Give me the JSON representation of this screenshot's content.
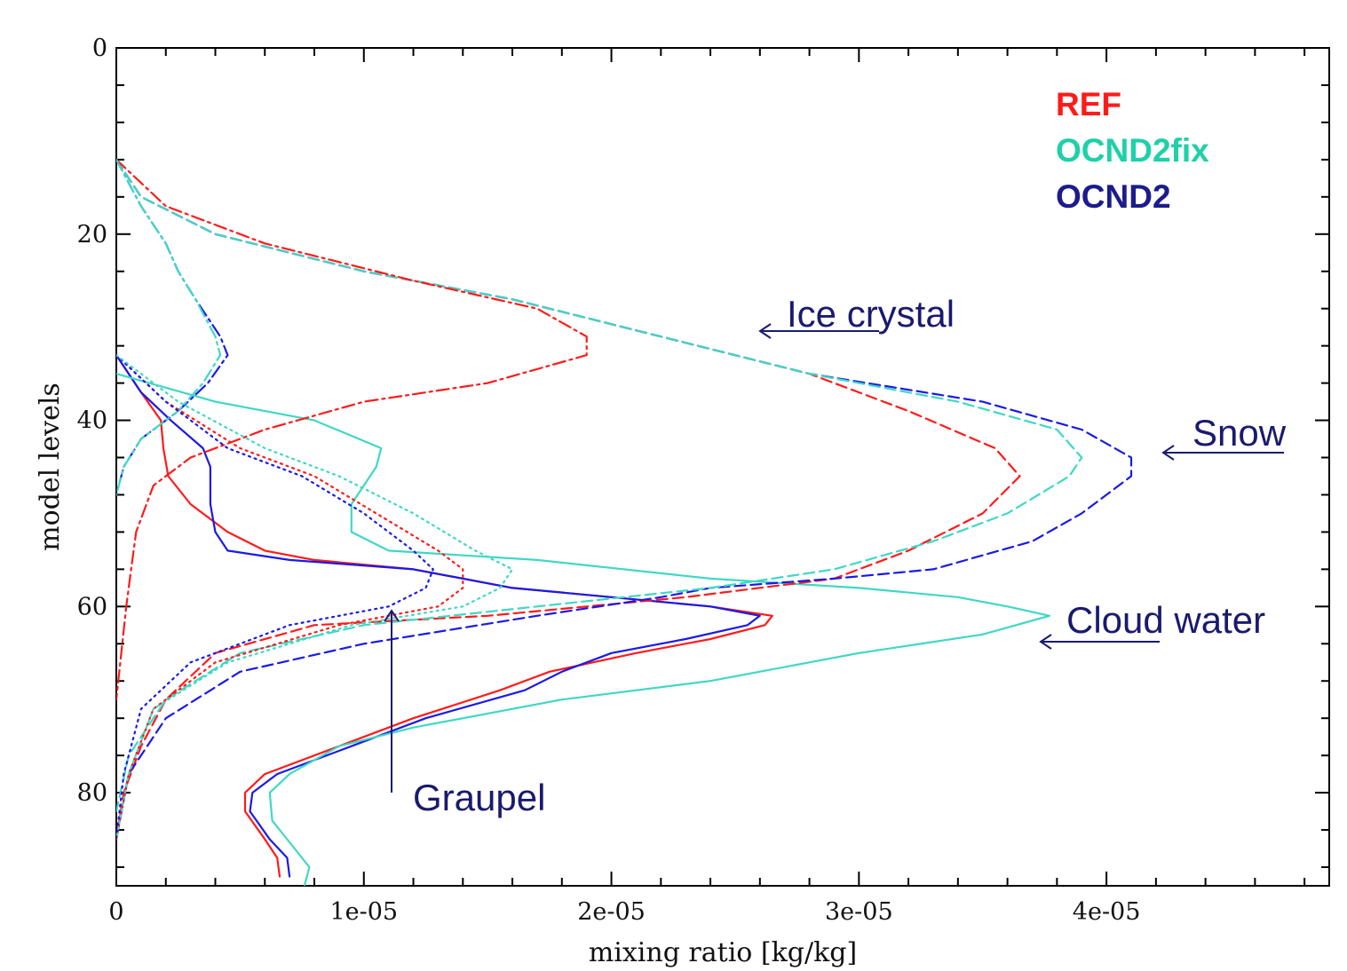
{
  "chart_data": {
    "type": "line",
    "title": "",
    "xlabel": "mixing ratio [kg/kg]",
    "ylabel": "model levels",
    "xlim": [
      0,
      4.9e-05
    ],
    "ylim": [
      90,
      0
    ],
    "y_inverted": true,
    "x_ticks": [
      0,
      1e-05,
      2e-05,
      3e-05,
      4e-05
    ],
    "x_tick_labels": [
      "0",
      "1e-05",
      "2e-05",
      "3e-05",
      "4e-05"
    ],
    "y_ticks": [
      0,
      20,
      40,
      60,
      80
    ],
    "y_tick_labels": [
      "0",
      "20",
      "40",
      "60",
      "80"
    ],
    "grid": false,
    "legend": {
      "placement": "top-right",
      "entries": [
        {
          "label": "REF",
          "color": "#ff1a1a"
        },
        {
          "label": "OCND2fix",
          "color": "#1fd0a8"
        },
        {
          "label": "OCND2",
          "color": "#1c1c8c"
        }
      ]
    },
    "annotations": [
      {
        "text": "Ice crystal",
        "arrow_to": [
          2.6e-05,
          30
        ]
      },
      {
        "text": "Snow",
        "arrow_to": [
          4.25e-05,
          43
        ]
      },
      {
        "text": "Cloud water",
        "arrow_to": [
          3.75e-05,
          64
        ]
      },
      {
        "text": "Graupel",
        "arrow_to": [
          1.12e-05,
          60
        ]
      }
    ],
    "series_groups": [
      {
        "species": "Cloud water",
        "style": "solid"
      },
      {
        "species": "Snow",
        "style": "dashed"
      },
      {
        "species": "Ice crystal",
        "style": "dash-dot"
      },
      {
        "species": "Graupel",
        "style": "dotted"
      }
    ],
    "series": [
      {
        "experiment": "REF",
        "species": "Cloud water",
        "color": "#ff1a1a",
        "style": "solid",
        "points": [
          [
            0.0,
            33
          ],
          [
            1e-06,
            37
          ],
          [
            1.8e-06,
            40
          ],
          [
            1.9e-06,
            43
          ],
          [
            2.1e-06,
            46
          ],
          [
            3e-06,
            49
          ],
          [
            4.5e-06,
            52
          ],
          [
            6e-06,
            54
          ],
          [
            8e-06,
            55
          ],
          [
            1.2e-05,
            56
          ],
          [
            1.6e-05,
            58
          ],
          [
            2e-05,
            59
          ],
          [
            2.4e-05,
            60
          ],
          [
            2.65e-05,
            61
          ],
          [
            2.62e-05,
            62
          ],
          [
            2.4e-05,
            63.5
          ],
          [
            2.1e-05,
            65
          ],
          [
            1.75e-05,
            67
          ],
          [
            1.55e-05,
            69
          ],
          [
            1.2e-05,
            72
          ],
          [
            9e-06,
            75
          ],
          [
            6e-06,
            78
          ],
          [
            5.2e-06,
            80
          ],
          [
            5.2e-06,
            82
          ],
          [
            6e-06,
            85
          ],
          [
            6.5e-06,
            87
          ],
          [
            6.6e-06,
            89
          ]
        ]
      },
      {
        "experiment": "OCND2",
        "species": "Cloud water",
        "color": "#1a1ae6",
        "style": "solid",
        "points": [
          [
            0.0,
            33
          ],
          [
            1e-06,
            37
          ],
          [
            2.2e-06,
            40
          ],
          [
            3.5e-06,
            43
          ],
          [
            3.8e-06,
            45
          ],
          [
            3.8e-06,
            49
          ],
          [
            4e-06,
            52
          ],
          [
            4.5e-06,
            54
          ],
          [
            7e-06,
            55
          ],
          [
            1.2e-05,
            56
          ],
          [
            1.6e-05,
            58
          ],
          [
            2e-05,
            59
          ],
          [
            2.4e-05,
            60
          ],
          [
            2.6e-05,
            61
          ],
          [
            2.55e-05,
            62
          ],
          [
            2.3e-05,
            63.5
          ],
          [
            2e-05,
            65
          ],
          [
            1.8e-05,
            67
          ],
          [
            1.65e-05,
            69
          ],
          [
            1.25e-05,
            72
          ],
          [
            9.5e-06,
            75
          ],
          [
            6.5e-06,
            78
          ],
          [
            5.5e-06,
            80
          ],
          [
            5.4e-06,
            82
          ],
          [
            6.2e-06,
            85
          ],
          [
            6.9e-06,
            87
          ],
          [
            7e-06,
            89
          ]
        ]
      },
      {
        "experiment": "OCND2fix",
        "species": "Cloud water",
        "color": "#3fd8c4",
        "style": "solid",
        "points": [
          [
            0.0,
            35
          ],
          [
            4e-06,
            38
          ],
          [
            8e-06,
            40
          ],
          [
            1.07e-05,
            43
          ],
          [
            1.05e-05,
            45
          ],
          [
            9.5e-06,
            49
          ],
          [
            9.5e-06,
            52
          ],
          [
            1.1e-05,
            54
          ],
          [
            1.7e-05,
            55
          ],
          [
            2.4e-05,
            57
          ],
          [
            3e-05,
            58
          ],
          [
            3.4e-05,
            59
          ],
          [
            3.6e-05,
            60
          ],
          [
            3.77e-05,
            61
          ],
          [
            3.5e-05,
            63
          ],
          [
            3e-05,
            65
          ],
          [
            2.4e-05,
            68
          ],
          [
            1.8e-05,
            70
          ],
          [
            1.2e-05,
            73
          ],
          [
            9e-06,
            75
          ],
          [
            7e-06,
            78
          ],
          [
            6.2e-06,
            80
          ],
          [
            6.3e-06,
            83
          ],
          [
            7.2e-06,
            86
          ],
          [
            7.8e-06,
            88
          ],
          [
            7.6e-06,
            90
          ]
        ]
      },
      {
        "experiment": "REF",
        "species": "Snow",
        "color": "#ff1a1a",
        "style": "dashed",
        "points": [
          [
            0.0,
            12
          ],
          [
            1e-06,
            16
          ],
          [
            4e-06,
            20
          ],
          [
            1e-05,
            24
          ],
          [
            1.6e-05,
            27
          ],
          [
            2.2e-05,
            31
          ],
          [
            2.8e-05,
            35
          ],
          [
            3.2e-05,
            39
          ],
          [
            3.55e-05,
            43
          ],
          [
            3.65e-05,
            46
          ],
          [
            3.5e-05,
            50
          ],
          [
            3.2e-05,
            54
          ],
          [
            2.9e-05,
            57
          ],
          [
            2.3e-05,
            59
          ],
          [
            1.5e-05,
            61
          ],
          [
            8e-06,
            62
          ],
          [
            4e-06,
            65
          ],
          [
            2e-06,
            70
          ],
          [
            1e-06,
            75
          ],
          [
            3e-07,
            80
          ],
          [
            0.0,
            85
          ]
        ]
      },
      {
        "experiment": "OCND2",
        "species": "Snow",
        "color": "#1a1ae6",
        "style": "dashed",
        "points": [
          [
            0.0,
            12
          ],
          [
            1e-06,
            16
          ],
          [
            4e-06,
            20
          ],
          [
            1e-05,
            24
          ],
          [
            1.6e-05,
            27
          ],
          [
            2.2e-05,
            31
          ],
          [
            2.8e-05,
            35
          ],
          [
            3.5e-05,
            38
          ],
          [
            3.9e-05,
            41
          ],
          [
            4.1e-05,
            44
          ],
          [
            4.1e-05,
            46
          ],
          [
            3.9e-05,
            50
          ],
          [
            3.7e-05,
            53
          ],
          [
            3.3e-05,
            56
          ],
          [
            2.9e-05,
            57
          ],
          [
            2.4e-05,
            58
          ],
          [
            2.2e-05,
            59
          ],
          [
            1.7e-05,
            61
          ],
          [
            1e-05,
            64
          ],
          [
            5e-06,
            67
          ],
          [
            2e-06,
            72
          ],
          [
            5e-07,
            78
          ],
          [
            0.0,
            85
          ]
        ]
      },
      {
        "experiment": "OCND2fix",
        "species": "Snow",
        "color": "#3fd8c4",
        "style": "dashed",
        "points": [
          [
            0.0,
            12
          ],
          [
            1e-06,
            16
          ],
          [
            4e-06,
            20
          ],
          [
            1e-05,
            24
          ],
          [
            1.6e-05,
            27
          ],
          [
            2.2e-05,
            31
          ],
          [
            2.8e-05,
            35
          ],
          [
            3.4e-05,
            38
          ],
          [
            3.8e-05,
            41
          ],
          [
            3.9e-05,
            44
          ],
          [
            3.85e-05,
            46
          ],
          [
            3.6e-05,
            50
          ],
          [
            3.3e-05,
            53
          ],
          [
            2.9e-05,
            56
          ],
          [
            2.4e-05,
            58
          ],
          [
            1.7e-05,
            60
          ],
          [
            1e-05,
            62
          ],
          [
            5e-06,
            65
          ],
          [
            2e-06,
            70
          ],
          [
            5e-07,
            76
          ],
          [
            0.0,
            82
          ]
        ]
      },
      {
        "experiment": "REF",
        "species": "Ice crystal",
        "color": "#ff1a1a",
        "style": "dash-dot",
        "points": [
          [
            0.0,
            12
          ],
          [
            2e-06,
            17
          ],
          [
            6e-06,
            21
          ],
          [
            1.2e-05,
            25
          ],
          [
            1.7e-05,
            28
          ],
          [
            1.9e-05,
            31
          ],
          [
            1.9e-05,
            33
          ],
          [
            1.5e-05,
            36
          ],
          [
            1e-05,
            38
          ],
          [
            6e-06,
            41
          ],
          [
            3e-06,
            44
          ],
          [
            1.5e-06,
            47
          ],
          [
            8e-07,
            52
          ],
          [
            6e-07,
            56
          ],
          [
            4e-07,
            60
          ],
          [
            2e-07,
            65
          ],
          [
            0.0,
            70
          ]
        ]
      },
      {
        "experiment": "OCND2",
        "species": "Ice crystal",
        "color": "#1a1ae6",
        "style": "dash-dot",
        "points": [
          [
            0.0,
            12
          ],
          [
            1e-06,
            17
          ],
          [
            2e-06,
            21
          ],
          [
            2.5e-06,
            24
          ],
          [
            3.2e-06,
            27
          ],
          [
            4.2e-06,
            31
          ],
          [
            4.5e-06,
            33
          ],
          [
            3.7e-06,
            36
          ],
          [
            2.5e-06,
            39
          ],
          [
            1e-06,
            42
          ],
          [
            3e-07,
            45
          ],
          [
            0.0,
            48
          ]
        ]
      },
      {
        "experiment": "OCND2fix",
        "species": "Ice crystal",
        "color": "#3fd8c4",
        "style": "dash-dot",
        "points": [
          [
            0.0,
            12
          ],
          [
            1e-06,
            17
          ],
          [
            2e-06,
            21
          ],
          [
            2.5e-06,
            24
          ],
          [
            3.2e-06,
            27
          ],
          [
            4e-06,
            31
          ],
          [
            4.2e-06,
            33
          ],
          [
            3.5e-06,
            36
          ],
          [
            2.5e-06,
            39
          ],
          [
            1e-06,
            42
          ],
          [
            3e-07,
            45
          ],
          [
            0.0,
            48
          ]
        ]
      },
      {
        "experiment": "REF",
        "species": "Graupel",
        "color": "#ff1a1a",
        "style": "dotted",
        "points": [
          [
            0.0,
            33
          ],
          [
            2e-06,
            38
          ],
          [
            5e-06,
            43
          ],
          [
            8e-06,
            46
          ],
          [
            1.05e-05,
            50
          ],
          [
            1.3e-05,
            54
          ],
          [
            1.4e-05,
            56
          ],
          [
            1.4e-05,
            58
          ],
          [
            1.3e-05,
            60
          ],
          [
            9e-06,
            62
          ],
          [
            4e-06,
            66
          ],
          [
            1.5e-06,
            71
          ],
          [
            5e-07,
            78
          ],
          [
            0.0,
            85
          ]
        ]
      },
      {
        "experiment": "OCND2",
        "species": "Graupel",
        "color": "#1a1ae6",
        "style": "dotted",
        "points": [
          [
            0.0,
            33
          ],
          [
            2e-06,
            38
          ],
          [
            4.5e-06,
            43
          ],
          [
            7.5e-06,
            46
          ],
          [
            1e-05,
            50
          ],
          [
            1.2e-05,
            54
          ],
          [
            1.28e-05,
            56
          ],
          [
            1.25e-05,
            58
          ],
          [
            1.1e-05,
            60
          ],
          [
            7e-06,
            62
          ],
          [
            3e-06,
            66
          ],
          [
            1e-06,
            71
          ],
          [
            3e-07,
            78
          ],
          [
            0.0,
            85
          ]
        ]
      },
      {
        "experiment": "OCND2fix",
        "species": "Graupel",
        "color": "#3fd8c4",
        "style": "dotted",
        "points": [
          [
            0.0,
            33
          ],
          [
            2.5e-06,
            38
          ],
          [
            6e-06,
            43
          ],
          [
            9e-06,
            46
          ],
          [
            1.2e-05,
            50
          ],
          [
            1.45e-05,
            54
          ],
          [
            1.6e-05,
            56
          ],
          [
            1.55e-05,
            58
          ],
          [
            1.4e-05,
            60
          ],
          [
            9.5e-06,
            62
          ],
          [
            4.5e-06,
            66
          ],
          [
            1.5e-06,
            71
          ],
          [
            5e-07,
            78
          ],
          [
            0.0,
            85
          ]
        ]
      }
    ]
  }
}
